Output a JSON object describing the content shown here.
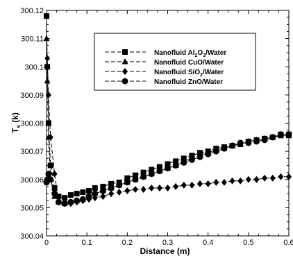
{
  "chart_data": {
    "type": "line",
    "title": "",
    "xlabel": "Distance (m)",
    "ylabel": {
      "main": "T",
      "sub": "s",
      "rest": " (k)"
    },
    "xlim": [
      0,
      0.6
    ],
    "ylim": [
      300.04,
      300.12
    ],
    "xticks": [
      "0",
      "0.1",
      "0.2",
      "0.3",
      "0.4",
      "0.5",
      "0.6"
    ],
    "yticks": [
      "300.04",
      "300.05",
      "300.06",
      "300.07",
      "300.08",
      "300.09",
      "300.1",
      "300.11",
      "300.12"
    ],
    "grid": false,
    "legend_position": "top-right",
    "series": [
      {
        "name": {
          "pre": "Nanofluid Al",
          "s1": "2",
          "mid": "O",
          "s2": "3",
          "post": "/Water"
        },
        "marker": "square",
        "color": "#000000",
        "x": [
          0,
          0.002,
          0.005,
          0.01,
          0.02,
          0.03,
          0.045,
          0.06,
          0.075,
          0.09,
          0.105,
          0.12,
          0.14,
          0.16,
          0.18,
          0.2,
          0.22,
          0.24,
          0.26,
          0.28,
          0.3,
          0.32,
          0.34,
          0.36,
          0.38,
          0.4,
          0.42,
          0.44,
          0.46,
          0.48,
          0.5,
          0.52,
          0.54,
          0.56,
          0.58,
          0.6
        ],
        "y": [
          300.118,
          300.1,
          300.08,
          300.065,
          300.057,
          300.054,
          300.0535,
          300.0545,
          300.055,
          300.0555,
          300.056,
          300.057,
          300.0575,
          300.0585,
          300.059,
          300.0605,
          300.0615,
          300.0625,
          300.0635,
          300.0645,
          300.0655,
          300.0665,
          300.0675,
          300.0685,
          300.0695,
          300.07,
          300.071,
          300.0715,
          300.072,
          300.0725,
          300.0735,
          300.074,
          300.0745,
          300.075,
          300.076,
          300.076
        ]
      },
      {
        "name": {
          "pre": "Nanofluid CuO/Water"
        },
        "marker": "triangle",
        "color": "#000000",
        "x": [
          0,
          0.002,
          0.005,
          0.01,
          0.02,
          0.03,
          0.045,
          0.06,
          0.075,
          0.09,
          0.105,
          0.12,
          0.14,
          0.16,
          0.18,
          0.2,
          0.22,
          0.24,
          0.26,
          0.28,
          0.3,
          0.32,
          0.34,
          0.36,
          0.38,
          0.4,
          0.42,
          0.44,
          0.46,
          0.48,
          0.5,
          0.52,
          0.54,
          0.56,
          0.58,
          0.6
        ],
        "y": [
          300.11,
          300.095,
          300.075,
          300.06,
          300.054,
          300.052,
          300.0515,
          300.052,
          300.0525,
          300.053,
          300.054,
          300.055,
          300.056,
          300.057,
          300.058,
          300.059,
          300.06,
          300.061,
          300.062,
          300.063,
          300.064,
          300.065,
          300.0665,
          300.0675,
          300.0685,
          300.0695,
          300.0705,
          300.071,
          300.072,
          300.0725,
          300.0735,
          300.074,
          300.0745,
          300.075,
          300.0755,
          300.0755
        ]
      },
      {
        "name": {
          "pre": "Nanofluid SiO",
          "s1": "2",
          "post": "/Water"
        },
        "marker": "diamond",
        "color": "#000000",
        "x": [
          0,
          0.002,
          0.005,
          0.01,
          0.02,
          0.03,
          0.045,
          0.06,
          0.075,
          0.09,
          0.105,
          0.12,
          0.14,
          0.16,
          0.18,
          0.2,
          0.22,
          0.24,
          0.26,
          0.28,
          0.3,
          0.32,
          0.34,
          0.36,
          0.38,
          0.4,
          0.42,
          0.44,
          0.46,
          0.48,
          0.5,
          0.52,
          0.54,
          0.56,
          0.58,
          0.6
        ],
        "y": [
          300.1,
          300.103,
          300.09,
          300.075,
          300.062,
          300.052,
          300.0515,
          300.0515,
          300.052,
          300.0525,
          300.053,
          300.0535,
          300.054,
          300.055,
          300.0555,
          300.056,
          300.0565,
          300.0565,
          300.057,
          300.057,
          300.057,
          300.0575,
          300.058,
          300.058,
          300.0585,
          300.0585,
          300.059,
          300.059,
          300.0595,
          300.0595,
          300.06,
          300.06,
          300.0605,
          300.0605,
          300.061,
          300.061
        ]
      },
      {
        "name": {
          "pre": "Nanofluid ZnO/Water"
        },
        "marker": "circle",
        "color": "#000000",
        "x": [
          0,
          0.002,
          0.005,
          0.01,
          0.02,
          0.03,
          0.045,
          0.06,
          0.075,
          0.09,
          0.105,
          0.12,
          0.14,
          0.16,
          0.18,
          0.2,
          0.22,
          0.24,
          0.26,
          0.28,
          0.3,
          0.32,
          0.34,
          0.36,
          0.38,
          0.4,
          0.42,
          0.44,
          0.46,
          0.48,
          0.5,
          0.52,
          0.54,
          0.56,
          0.58,
          0.6
        ],
        "y": [
          300.059,
          300.06,
          300.062,
          300.06,
          300.055,
          300.052,
          300.0515,
          300.052,
          300.0525,
          300.053,
          300.054,
          300.055,
          300.056,
          300.057,
          300.058,
          300.059,
          300.06,
          300.061,
          300.062,
          300.063,
          300.064,
          300.065,
          300.066,
          300.067,
          300.068,
          300.069,
          300.07,
          300.071,
          300.072,
          300.073,
          300.073,
          300.0735,
          300.074,
          300.075,
          300.076,
          300.076
        ]
      }
    ]
  }
}
